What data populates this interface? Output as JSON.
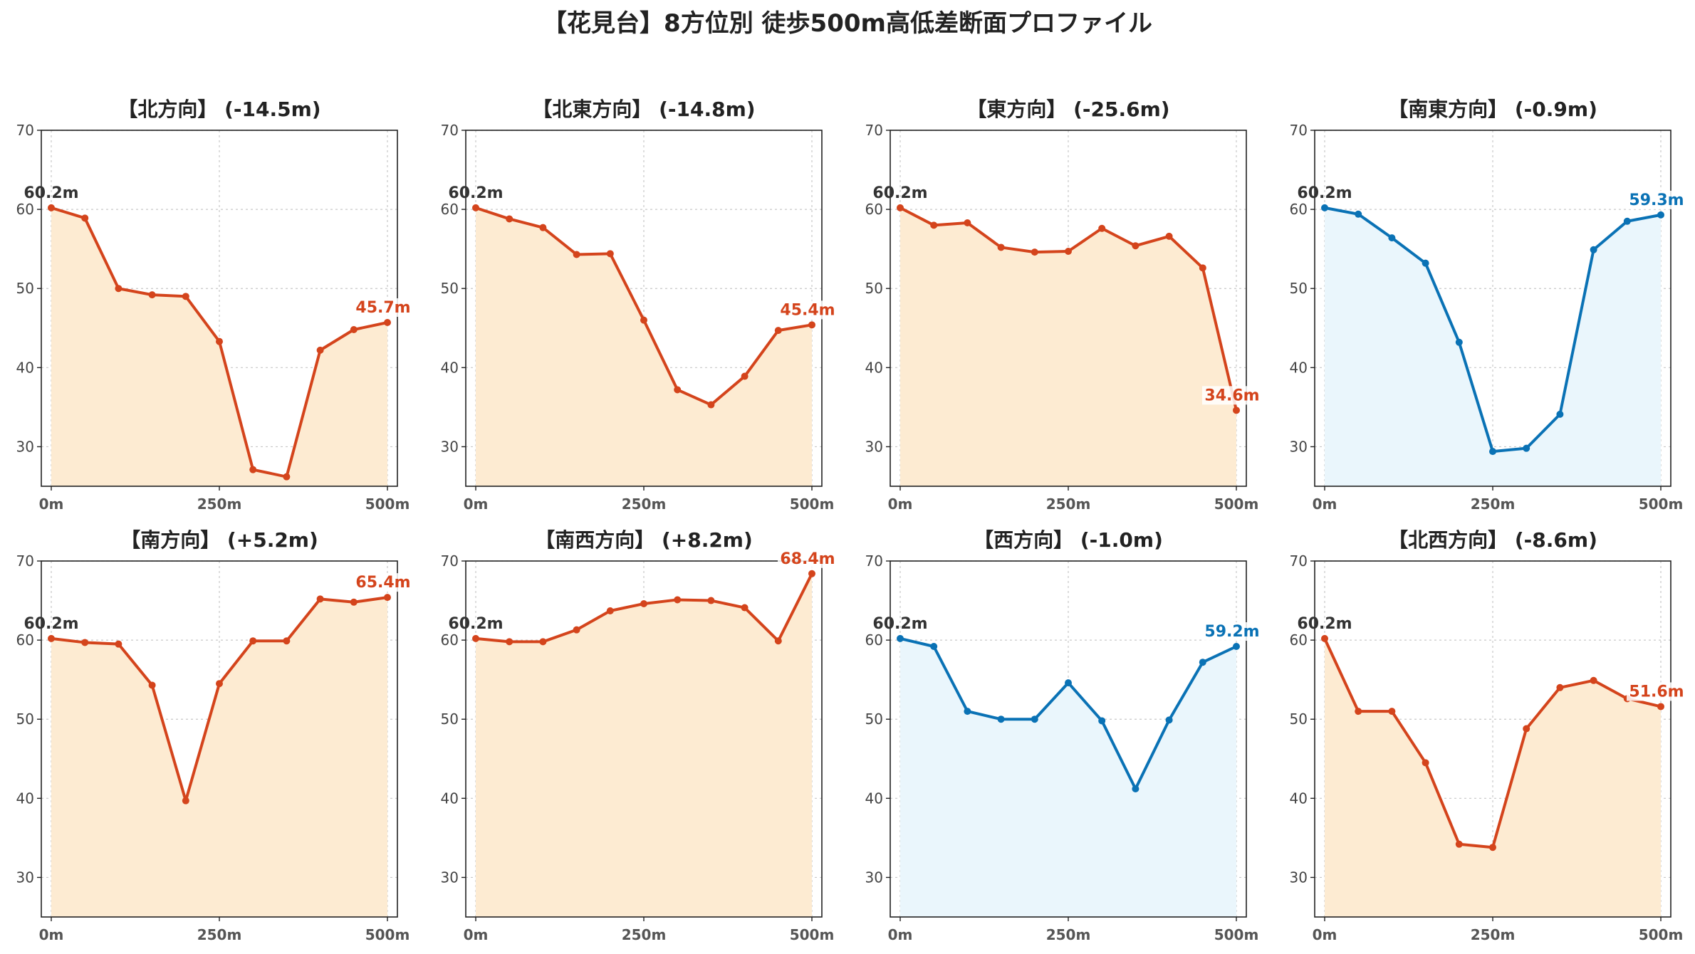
{
  "title": "【花見台】8方位別 徒歩500m高低差断面プロファイル",
  "colors": {
    "down": "#d4441c",
    "down_fill": "#fdebd2",
    "up": "#0a72b5",
    "up_fill": "#eaf6fc"
  },
  "chart_data": [
    {
      "type": "area",
      "title": "【北方向】 (-14.5m)",
      "x": [
        0,
        50,
        100,
        150,
        200,
        250,
        300,
        350,
        400,
        450,
        500
      ],
      "y": [
        60.2,
        58.9,
        50.0,
        49.2,
        49.0,
        43.3,
        27.1,
        26.2,
        42.2,
        44.8,
        45.7
      ],
      "ylim": [
        25,
        70
      ],
      "xlim": [
        0,
        500
      ],
      "yticks": [
        "30",
        "40",
        "50",
        "60",
        "70"
      ],
      "xticks": [
        "0m",
        "250m",
        "500m"
      ],
      "start_label": "60.2m",
      "end_label": "45.7m",
      "color": "down",
      "grid": true
    },
    {
      "type": "area",
      "title": "【北東方向】 (-14.8m)",
      "x": [
        0,
        50,
        100,
        150,
        200,
        250,
        300,
        350,
        400,
        450,
        500
      ],
      "y": [
        60.2,
        58.8,
        57.7,
        54.3,
        54.4,
        46.0,
        37.2,
        35.3,
        38.9,
        44.7,
        45.4
      ],
      "ylim": [
        25,
        70
      ],
      "xlim": [
        0,
        500
      ],
      "yticks": [
        "30",
        "40",
        "50",
        "60",
        "70"
      ],
      "xticks": [
        "0m",
        "250m",
        "500m"
      ],
      "start_label": "60.2m",
      "end_label": "45.4m",
      "color": "down",
      "grid": true
    },
    {
      "type": "area",
      "title": "【東方向】 (-25.6m)",
      "x": [
        0,
        50,
        100,
        150,
        200,
        250,
        300,
        350,
        400,
        450,
        500
      ],
      "y": [
        60.2,
        58.0,
        58.3,
        55.2,
        54.6,
        54.7,
        57.6,
        55.4,
        56.6,
        52.6,
        34.6
      ],
      "ylim": [
        25,
        70
      ],
      "xlim": [
        0,
        500
      ],
      "yticks": [
        "30",
        "40",
        "50",
        "60",
        "70"
      ],
      "xticks": [
        "0m",
        "250m",
        "500m"
      ],
      "start_label": "60.2m",
      "end_label": "34.6m",
      "color": "down",
      "grid": true
    },
    {
      "type": "area",
      "title": "【南東方向】 (-0.9m)",
      "x": [
        0,
        50,
        100,
        150,
        200,
        250,
        300,
        350,
        400,
        450,
        500
      ],
      "y": [
        60.2,
        59.4,
        56.4,
        53.2,
        43.2,
        29.4,
        29.8,
        34.1,
        54.9,
        58.5,
        59.3
      ],
      "ylim": [
        25,
        70
      ],
      "xlim": [
        0,
        500
      ],
      "yticks": [
        "30",
        "40",
        "50",
        "60",
        "70"
      ],
      "xticks": [
        "0m",
        "250m",
        "500m"
      ],
      "start_label": "60.2m",
      "end_label": "59.3m",
      "color": "up",
      "grid": true
    },
    {
      "type": "area",
      "title": "【南方向】 (+5.2m)",
      "x": [
        0,
        50,
        100,
        150,
        200,
        250,
        300,
        350,
        400,
        450,
        500
      ],
      "y": [
        60.2,
        59.7,
        59.5,
        54.3,
        39.7,
        54.5,
        59.9,
        59.9,
        65.2,
        64.8,
        65.4
      ],
      "ylim": [
        25,
        70
      ],
      "xlim": [
        0,
        500
      ],
      "yticks": [
        "30",
        "40",
        "50",
        "60",
        "70"
      ],
      "xticks": [
        "0m",
        "250m",
        "500m"
      ],
      "start_label": "60.2m",
      "end_label": "65.4m",
      "color": "down",
      "grid": true
    },
    {
      "type": "area",
      "title": "【南西方向】 (+8.2m)",
      "x": [
        0,
        50,
        100,
        150,
        200,
        250,
        300,
        350,
        400,
        450,
        500
      ],
      "y": [
        60.2,
        59.8,
        59.8,
        61.3,
        63.7,
        64.6,
        65.1,
        65.0,
        64.1,
        59.9,
        68.4
      ],
      "ylim": [
        25,
        70
      ],
      "xlim": [
        0,
        500
      ],
      "yticks": [
        "30",
        "40",
        "50",
        "60",
        "70"
      ],
      "xticks": [
        "0m",
        "250m",
        "500m"
      ],
      "start_label": "60.2m",
      "end_label": "68.4m",
      "color": "down",
      "grid": true
    },
    {
      "type": "area",
      "title": "【西方向】 (-1.0m)",
      "x": [
        0,
        50,
        100,
        150,
        200,
        250,
        300,
        350,
        400,
        450,
        500
      ],
      "y": [
        60.2,
        59.2,
        51.0,
        50.0,
        50.0,
        54.6,
        49.8,
        41.2,
        49.9,
        57.2,
        59.2
      ],
      "ylim": [
        25,
        70
      ],
      "xlim": [
        0,
        500
      ],
      "yticks": [
        "30",
        "40",
        "50",
        "60",
        "70"
      ],
      "xticks": [
        "0m",
        "250m",
        "500m"
      ],
      "start_label": "60.2m",
      "end_label": "59.2m",
      "color": "up",
      "grid": true
    },
    {
      "type": "area",
      "title": "【北西方向】 (-8.6m)",
      "x": [
        0,
        50,
        100,
        150,
        200,
        250,
        300,
        350,
        400,
        450,
        500
      ],
      "y": [
        60.2,
        51.0,
        51.0,
        44.5,
        34.2,
        33.8,
        48.8,
        54.0,
        54.9,
        52.6,
        51.6
      ],
      "ylim": [
        25,
        70
      ],
      "xlim": [
        0,
        500
      ],
      "yticks": [
        "30",
        "40",
        "50",
        "60",
        "70"
      ],
      "xticks": [
        "0m",
        "250m",
        "500m"
      ],
      "start_label": "60.2m",
      "end_label": "51.6m",
      "color": "down",
      "grid": true
    }
  ]
}
